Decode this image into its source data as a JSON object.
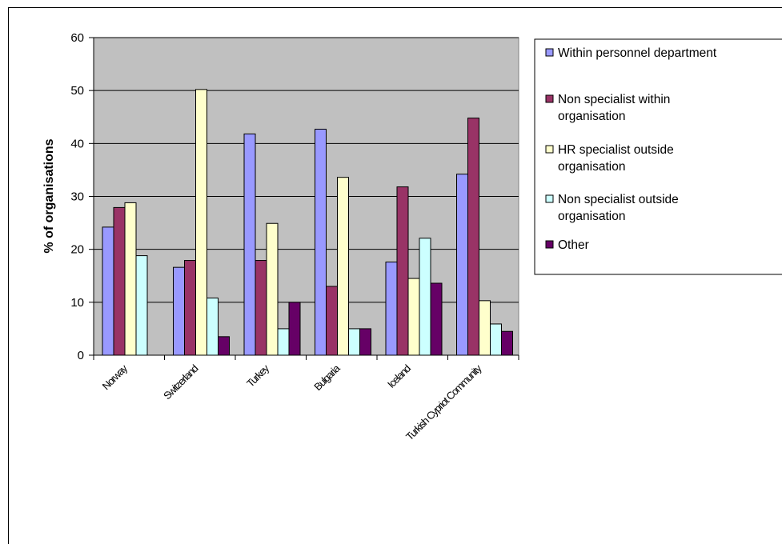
{
  "chart_data": {
    "type": "bar",
    "title": "",
    "xlabel": "",
    "ylabel": "% of organisations",
    "ylim": [
      0,
      60
    ],
    "yticks": [
      0,
      10,
      20,
      30,
      40,
      50,
      60
    ],
    "grid": true,
    "legend_position": "right",
    "categories": [
      "Norway",
      "Switzerland",
      "Turkey",
      "Bulgaria",
      "Iceland",
      "Turkish Cypriot Community"
    ],
    "series": [
      {
        "name": "Within personnel department",
        "color": "#9999ff",
        "values": [
          24.2,
          16.6,
          41.8,
          42.7,
          17.6,
          34.2
        ]
      },
      {
        "name": "Non specialist within organisation",
        "color": "#993366",
        "values": [
          27.9,
          17.9,
          17.9,
          13.0,
          31.8,
          44.8
        ]
      },
      {
        "name": "HR specialist outside organisation",
        "color": "#ffffcc",
        "values": [
          28.8,
          50.2,
          24.9,
          33.6,
          14.5,
          10.3
        ]
      },
      {
        "name": "Non specialist outside organisation",
        "color": "#ccffff",
        "values": [
          18.8,
          10.8,
          5.0,
          5.0,
          22.1,
          5.9
        ]
      },
      {
        "name": "Other",
        "color": "#660066",
        "values": [
          0,
          3.5,
          10.0,
          5.0,
          13.6,
          4.5
        ]
      }
    ],
    "plot_background": "#c0c0c0"
  }
}
